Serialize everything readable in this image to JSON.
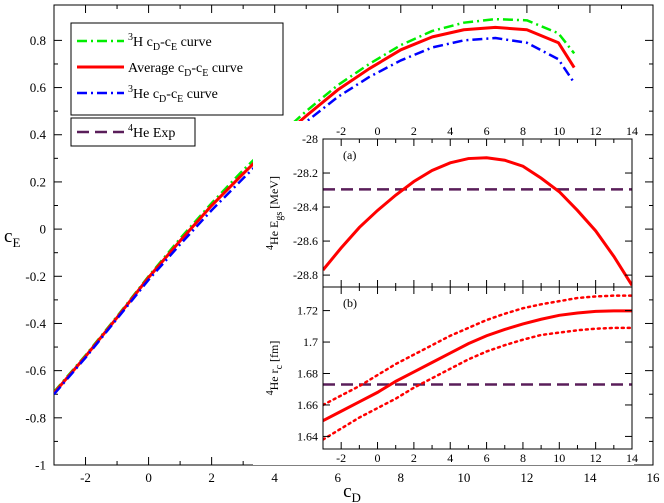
{
  "chart_data": [
    {
      "id": "main",
      "type": "line",
      "xlabel": "c_D",
      "ylabel": "c_E",
      "xlim": [
        -3,
        16
      ],
      "ylim": [
        -1,
        0.95
      ],
      "xticks": [
        -2,
        0,
        2,
        4,
        6,
        8,
        10,
        12,
        14,
        16
      ],
      "yticks": [
        -1,
        -0.8,
        -0.6,
        -0.4,
        -0.2,
        0,
        0.2,
        0.4,
        0.6,
        0.8
      ],
      "grid": false,
      "legend_position": "top-left",
      "series": [
        {
          "name": "3H cD-cE curve",
          "label": {
            "pre": "3",
            "main": "H c",
            "sub1": "D",
            "mid": "-c",
            "sub2": "E",
            "post": " curve"
          },
          "color": "#00ee00",
          "dash": "10,4,2,4",
          "x": [
            -3,
            -2,
            -1,
            0,
            1,
            2,
            3,
            4,
            5,
            6,
            7,
            8,
            9,
            10,
            11,
            12,
            13,
            13.5
          ],
          "y": [
            -0.69,
            -0.535,
            -0.37,
            -0.2,
            -0.04,
            0.11,
            0.25,
            0.38,
            0.5,
            0.61,
            0.7,
            0.78,
            0.84,
            0.875,
            0.89,
            0.885,
            0.83,
            0.745
          ]
        },
        {
          "name": "Average cD-cE curve",
          "label": {
            "pre": "",
            "main": "Average c",
            "sub1": "D",
            "mid": "-c",
            "sub2": "E",
            "post": " curve"
          },
          "color": "#ff0000",
          "dash": "",
          "x": [
            -3,
            -2,
            -1,
            0,
            1,
            2,
            3,
            4,
            5,
            6,
            7,
            8,
            9,
            10,
            11,
            12,
            13,
            13.5
          ],
          "y": [
            -0.695,
            -0.54,
            -0.375,
            -0.205,
            -0.05,
            0.1,
            0.235,
            0.365,
            0.48,
            0.59,
            0.68,
            0.76,
            0.815,
            0.845,
            0.855,
            0.845,
            0.79,
            0.685
          ]
        },
        {
          "name": "3He cD-cE curve",
          "label": {
            "pre": "3",
            "main": "He c",
            "sub1": "D",
            "mid": "-c",
            "sub2": "E",
            "post": " curve"
          },
          "color": "#0000ff",
          "dash": "10,4,2,4",
          "x": [
            -3,
            -2,
            -1,
            0,
            1,
            2,
            3,
            4,
            5,
            6,
            7,
            8,
            9,
            10,
            11,
            12,
            13,
            13.5
          ],
          "y": [
            -0.7,
            -0.545,
            -0.38,
            -0.215,
            -0.065,
            0.08,
            0.215,
            0.345,
            0.455,
            0.56,
            0.645,
            0.715,
            0.77,
            0.8,
            0.81,
            0.79,
            0.72,
            0.62
          ]
        }
      ],
      "legend_box_2": {
        "name": "4He Exp",
        "label": {
          "pre": "4",
          "main": "He Exp"
        },
        "color": "#5a1e5a",
        "dash": "12,6"
      }
    },
    {
      "id": "inset_a",
      "type": "line",
      "panel_label": "(a)",
      "ylabel_parts": {
        "pre": "4",
        "main": "He E",
        "sub": "gs",
        "post": " [MeV]"
      },
      "xlim": [
        -3,
        14
      ],
      "ylim": [
        -28.87,
        -28.0
      ],
      "xticks_top": [
        -2,
        0,
        2,
        4,
        6,
        8,
        10,
        12,
        14
      ],
      "yticks": [
        -28,
        -28.2,
        -28.4,
        -28.6,
        -28.8
      ],
      "ytick_labels": [
        "-28",
        "-28.2",
        "-28.4",
        "-28.6",
        "-28.8"
      ],
      "series": [
        {
          "name": "Average curve",
          "color": "#ff0000",
          "dash": "",
          "x": [
            -3,
            -2,
            -1,
            0,
            1,
            2,
            3,
            4,
            5,
            6,
            7,
            8,
            9,
            10,
            11,
            12,
            13,
            14
          ],
          "y": [
            -28.77,
            -28.64,
            -28.52,
            -28.42,
            -28.33,
            -28.25,
            -28.185,
            -28.14,
            -28.115,
            -28.11,
            -28.125,
            -28.16,
            -28.23,
            -28.31,
            -28.42,
            -28.54,
            -28.69,
            -28.86
          ]
        }
      ],
      "hline": {
        "name": "4He Exp",
        "y": -28.296,
        "color": "#5a1e5a",
        "dash": "12,6"
      }
    },
    {
      "id": "inset_b",
      "type": "line",
      "panel_label": "(b)",
      "ylabel_parts": {
        "pre": "4",
        "main": "He r",
        "sub": "c",
        "post": " [fm]"
      },
      "xlim": [
        -3,
        14
      ],
      "ylim": [
        1.632,
        1.735
      ],
      "xticks_bottom": [
        -2,
        0,
        2,
        4,
        6,
        8,
        10,
        12,
        14
      ],
      "yticks": [
        1.64,
        1.66,
        1.68,
        1.7,
        1.72
      ],
      "ytick_labels": [
        "1.64",
        "1.66",
        "1.68",
        "1.7",
        "1.72"
      ],
      "series": [
        {
          "name": "Average",
          "color": "#ff0000",
          "dash": "",
          "x": [
            -3,
            -2,
            -1,
            0,
            1,
            2,
            3,
            4,
            5,
            6,
            7,
            8,
            9,
            10,
            11,
            12,
            13,
            14
          ],
          "y": [
            1.65,
            1.656,
            1.662,
            1.668,
            1.675,
            1.681,
            1.687,
            1.693,
            1.699,
            1.704,
            1.708,
            1.7115,
            1.7145,
            1.717,
            1.7185,
            1.7195,
            1.7198,
            1.7198
          ]
        },
        {
          "name": "Upper bound",
          "color": "#ff0000",
          "dash": "2,4",
          "x": [
            -3,
            -2,
            -1,
            0,
            1,
            2,
            3,
            4,
            5,
            6,
            7,
            8,
            9,
            10,
            11,
            12,
            13,
            14
          ],
          "y": [
            1.66,
            1.666,
            1.672,
            1.679,
            1.686,
            1.692,
            1.698,
            1.704,
            1.709,
            1.714,
            1.718,
            1.7215,
            1.724,
            1.726,
            1.728,
            1.729,
            1.7295,
            1.7295
          ]
        },
        {
          "name": "Lower bound",
          "color": "#ff0000",
          "dash": "2,4",
          "x": [
            -3,
            -2,
            -1,
            0,
            1,
            2,
            3,
            4,
            5,
            6,
            7,
            8,
            9,
            10,
            11,
            12,
            13,
            14
          ],
          "y": [
            1.638,
            1.645,
            1.652,
            1.658,
            1.664,
            1.671,
            1.677,
            1.683,
            1.689,
            1.694,
            1.698,
            1.7015,
            1.7045,
            1.706,
            1.7075,
            1.7085,
            1.709,
            1.709
          ]
        }
      ],
      "hline": {
        "name": "4He Exp",
        "y": 1.673,
        "color": "#5a1e5a",
        "dash": "12,6"
      }
    }
  ]
}
